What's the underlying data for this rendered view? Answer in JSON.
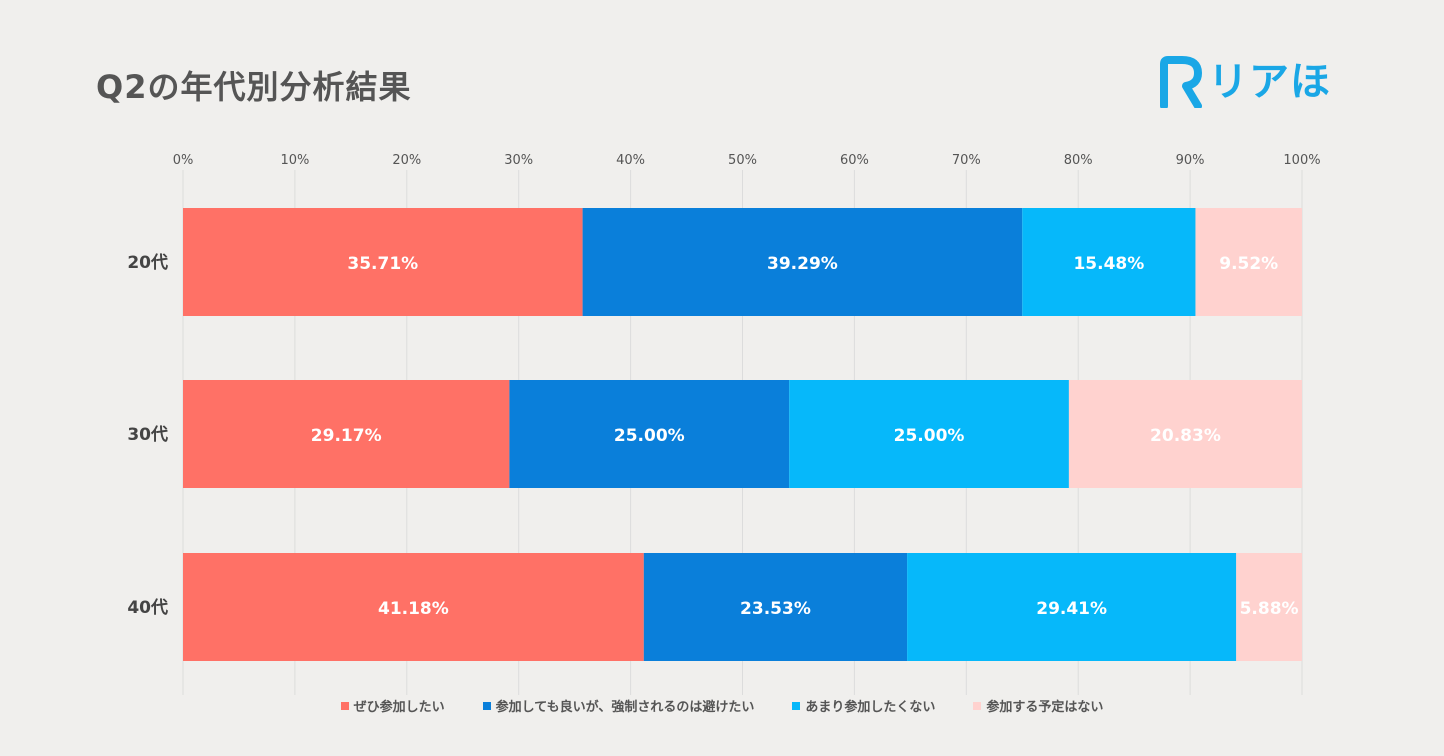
{
  "header": {
    "title": "Q2の年代別分析結果"
  },
  "logo": {
    "text": "リアほ",
    "color": "#1aa7e6"
  },
  "chart_data": {
    "type": "bar",
    "orientation": "horizontal",
    "stacked": true,
    "title": "Q2の年代別分析結果",
    "categories": [
      "20代",
      "30代",
      "40代"
    ],
    "xlim": [
      0,
      100
    ],
    "xticks": [
      "0%",
      "10%",
      "20%",
      "30%",
      "40%",
      "50%",
      "60%",
      "70%",
      "80%",
      "90%",
      "100%"
    ],
    "grid": true,
    "legend_position": "bottom",
    "series": [
      {
        "name": "ぜひ参加したい",
        "color": "#ff7166",
        "values": [
          35.71,
          29.17,
          41.18
        ],
        "labels": [
          "35.71%",
          "29.17%",
          "41.18%"
        ]
      },
      {
        "name": "参加しても良いが、強制されるのは避けたい",
        "color": "#0a7fda",
        "values": [
          39.29,
          25.0,
          23.53
        ],
        "labels": [
          "39.29%",
          "25.00%",
          "23.53%"
        ]
      },
      {
        "name": "あまり参加したくない",
        "color": "#06b8fa",
        "values": [
          15.48,
          25.0,
          29.41
        ],
        "labels": [
          "15.48%",
          "25.00%",
          "29.41%"
        ]
      },
      {
        "name": "参加する予定はない",
        "color": "#ffd2cf",
        "values": [
          9.52,
          20.83,
          5.88
        ],
        "labels": [
          "9.52%",
          "20.83%",
          "5.88%"
        ]
      }
    ]
  }
}
